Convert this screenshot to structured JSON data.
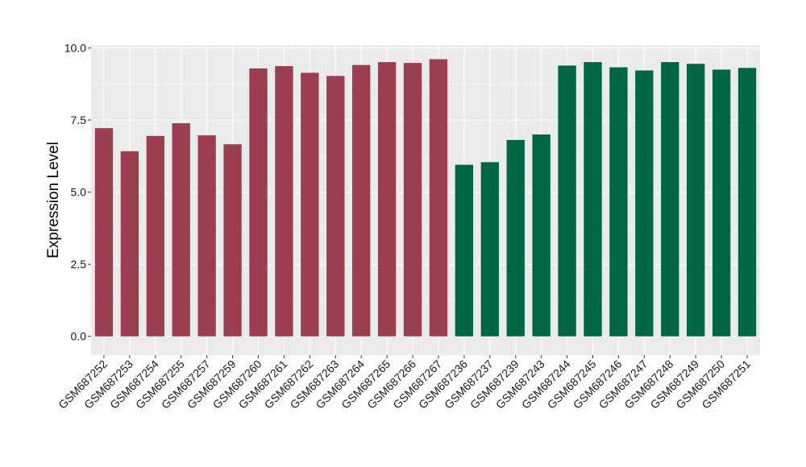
{
  "chart_data": {
    "type": "bar",
    "title": "",
    "xlabel": "",
    "ylabel": "Expression Level",
    "ylim": [
      -0.65,
      10.1
    ],
    "yticks": [
      0.0,
      2.5,
      5.0,
      7.5,
      10.0
    ],
    "ytick_labels": [
      "0.0",
      "2.5",
      "5.0",
      "7.5",
      "10.0"
    ],
    "grid": true,
    "legend": "none",
    "background": "#ebebeb",
    "categories": [
      "GSM687252",
      "GSM687253",
      "GSM687254",
      "GSM687255",
      "GSM687257",
      "GSM687259",
      "GSM687260",
      "GSM687261",
      "GSM687262",
      "GSM687263",
      "GSM687264",
      "GSM687265",
      "GSM687266",
      "GSM687267",
      "GSM687236",
      "GSM687237",
      "GSM687239",
      "GSM687243",
      "GSM687244",
      "GSM687245",
      "GSM687246",
      "GSM687247",
      "GSM687248",
      "GSM687249",
      "GSM687250",
      "GSM687251"
    ],
    "values": [
      7.22,
      6.42,
      6.95,
      7.39,
      6.97,
      6.66,
      9.29,
      9.37,
      9.14,
      9.03,
      9.41,
      9.51,
      9.48,
      9.61,
      5.95,
      6.04,
      6.81,
      7.0,
      9.39,
      9.51,
      9.33,
      9.22,
      9.51,
      9.45,
      9.25,
      9.31
    ],
    "colors": [
      "#993f4f",
      "#993f4f",
      "#993f4f",
      "#993f4f",
      "#993f4f",
      "#993f4f",
      "#993f4f",
      "#993f4f",
      "#993f4f",
      "#993f4f",
      "#993f4f",
      "#993f4f",
      "#993f4f",
      "#993f4f",
      "#006644",
      "#006644",
      "#006644",
      "#006644",
      "#006644",
      "#006644",
      "#006644",
      "#006644",
      "#006644",
      "#006644",
      "#006644",
      "#006644"
    ]
  }
}
